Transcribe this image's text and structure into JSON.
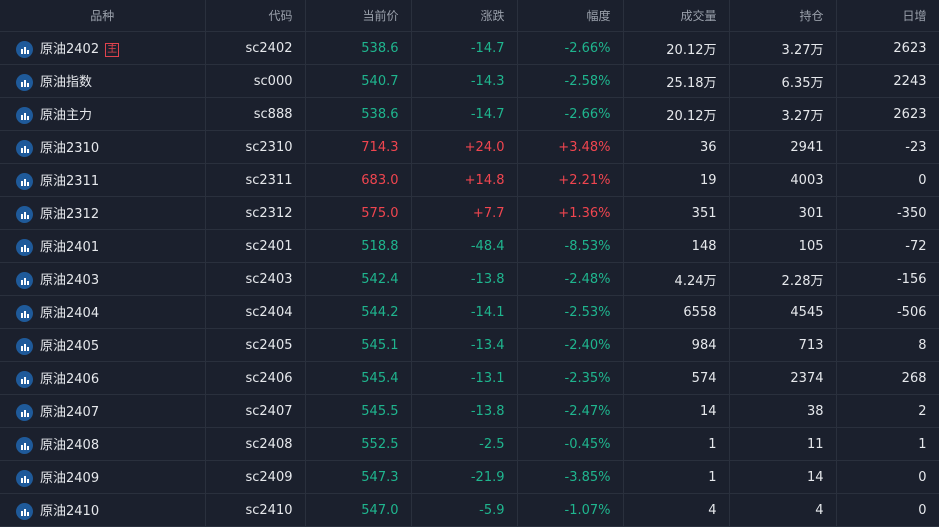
{
  "headers": [
    "品种",
    "代码",
    "当前价",
    "涨跌",
    "幅度",
    "成交量",
    "持仓",
    "日增"
  ],
  "main_badge": "主",
  "colors": {
    "up": "#f0454f",
    "down": "#1fb58e"
  },
  "rows": [
    {
      "name": "原油2402",
      "main": true,
      "code": "sc2402",
      "price": "538.6",
      "change": "-14.7",
      "pct": "-2.66%",
      "vol": "20.12万",
      "oi": "3.27万",
      "daily": "2623",
      "dir": "down"
    },
    {
      "name": "原油指数",
      "code": "sc000",
      "price": "540.7",
      "change": "-14.3",
      "pct": "-2.58%",
      "vol": "25.18万",
      "oi": "6.35万",
      "daily": "2243",
      "dir": "down"
    },
    {
      "name": "原油主力",
      "code": "sc888",
      "price": "538.6",
      "change": "-14.7",
      "pct": "-2.66%",
      "vol": "20.12万",
      "oi": "3.27万",
      "daily": "2623",
      "dir": "down"
    },
    {
      "name": "原油2310",
      "code": "sc2310",
      "price": "714.3",
      "change": "+24.0",
      "pct": "+3.48%",
      "vol": "36",
      "oi": "2941",
      "daily": "-23",
      "dir": "up"
    },
    {
      "name": "原油2311",
      "code": "sc2311",
      "price": "683.0",
      "change": "+14.8",
      "pct": "+2.21%",
      "vol": "19",
      "oi": "4003",
      "daily": "0",
      "dir": "up"
    },
    {
      "name": "原油2312",
      "code": "sc2312",
      "price": "575.0",
      "change": "+7.7",
      "pct": "+1.36%",
      "vol": "351",
      "oi": "301",
      "daily": "-350",
      "dir": "up"
    },
    {
      "name": "原油2401",
      "code": "sc2401",
      "price": "518.8",
      "change": "-48.4",
      "pct": "-8.53%",
      "vol": "148",
      "oi": "105",
      "daily": "-72",
      "dir": "down"
    },
    {
      "name": "原油2403",
      "code": "sc2403",
      "price": "542.4",
      "change": "-13.8",
      "pct": "-2.48%",
      "vol": "4.24万",
      "oi": "2.28万",
      "daily": "-156",
      "dir": "down"
    },
    {
      "name": "原油2404",
      "code": "sc2404",
      "price": "544.2",
      "change": "-14.1",
      "pct": "-2.53%",
      "vol": "6558",
      "oi": "4545",
      "daily": "-506",
      "dir": "down"
    },
    {
      "name": "原油2405",
      "code": "sc2405",
      "price": "545.1",
      "change": "-13.4",
      "pct": "-2.40%",
      "vol": "984",
      "oi": "713",
      "daily": "8",
      "dir": "down"
    },
    {
      "name": "原油2406",
      "code": "sc2406",
      "price": "545.4",
      "change": "-13.1",
      "pct": "-2.35%",
      "vol": "574",
      "oi": "2374",
      "daily": "268",
      "dir": "down"
    },
    {
      "name": "原油2407",
      "code": "sc2407",
      "price": "545.5",
      "change": "-13.8",
      "pct": "-2.47%",
      "vol": "14",
      "oi": "38",
      "daily": "2",
      "dir": "down"
    },
    {
      "name": "原油2408",
      "code": "sc2408",
      "price": "552.5",
      "change": "-2.5",
      "pct": "-0.45%",
      "vol": "1",
      "oi": "11",
      "daily": "1",
      "dir": "down"
    },
    {
      "name": "原油2409",
      "code": "sc2409",
      "price": "547.3",
      "change": "-21.9",
      "pct": "-3.85%",
      "vol": "1",
      "oi": "14",
      "daily": "0",
      "dir": "down"
    },
    {
      "name": "原油2410",
      "code": "sc2410",
      "price": "547.0",
      "change": "-5.9",
      "pct": "-1.07%",
      "vol": "4",
      "oi": "4",
      "daily": "0",
      "dir": "down"
    }
  ]
}
